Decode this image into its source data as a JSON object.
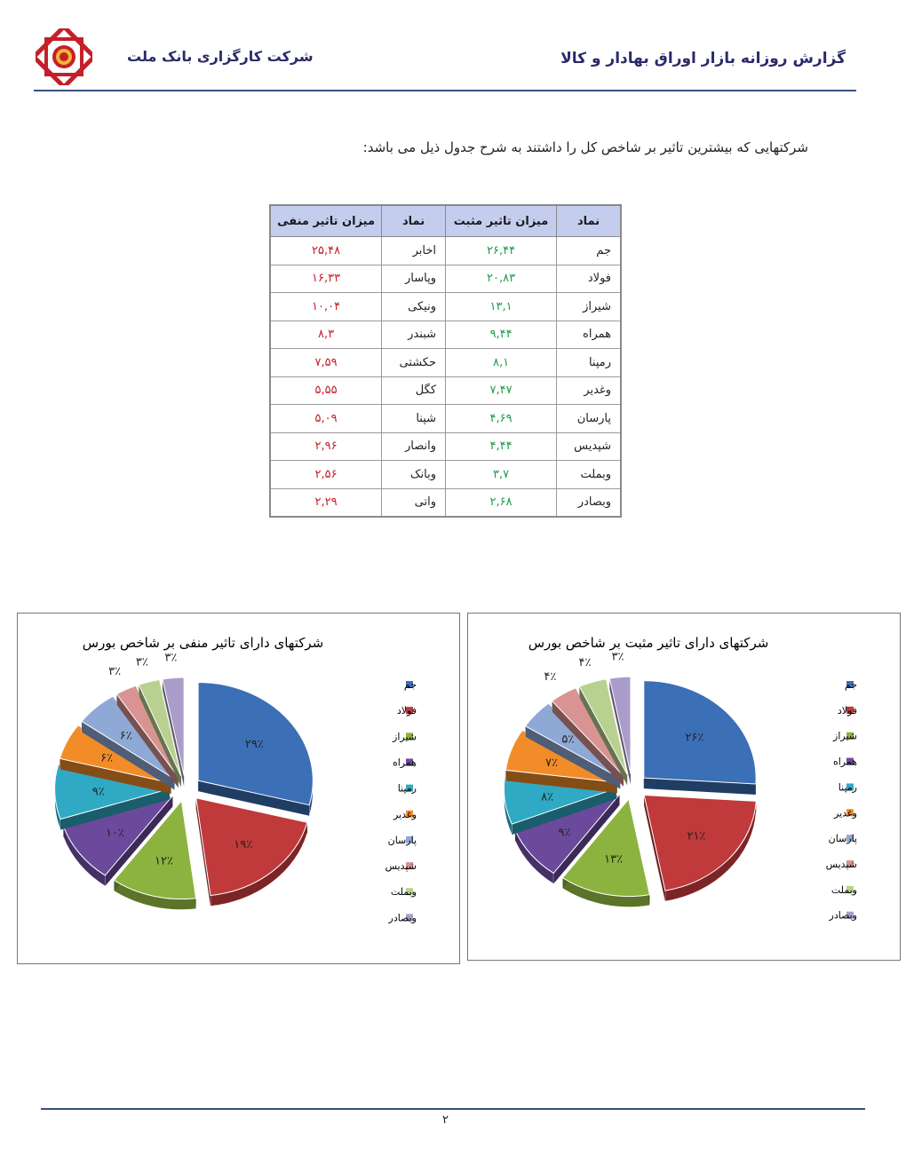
{
  "header": {
    "report_title": "گزارش روزانه بازار اوراق بهادار و کالا",
    "company": "شرکت کارگزاری بانک ملت"
  },
  "intro": "شرکتهایی که بیشترین تاثیر بر شاخص کل را داشتند به شرح جدول ذیل می باشد:",
  "table": {
    "headers": [
      "نماد",
      "میزان تاثیر مثبت",
      "نماد",
      "میزان تاثیر منفی"
    ],
    "rows": [
      {
        "pos_sym": "جم",
        "pos_val": "۲۶,۴۴",
        "neg_sym": "اخابر",
        "neg_val": "۲۵,۴۸"
      },
      {
        "pos_sym": "فولاد",
        "pos_val": "۲۰,۸۳",
        "neg_sym": "وپاسار",
        "neg_val": "۱۶,۳۳"
      },
      {
        "pos_sym": "شیراز",
        "pos_val": "۱۳,۱",
        "neg_sym": "ونیکی",
        "neg_val": "۱۰,۰۴"
      },
      {
        "pos_sym": "همراه",
        "pos_val": "۹,۴۴",
        "neg_sym": "شبندر",
        "neg_val": "۸,۳"
      },
      {
        "pos_sym": "رمپنا",
        "pos_val": "۸,۱",
        "neg_sym": "حکشتی",
        "neg_val": "۷,۵۹"
      },
      {
        "pos_sym": "وغدیر",
        "pos_val": "۷,۴۷",
        "neg_sym": "کگل",
        "neg_val": "۵,۵۵"
      },
      {
        "pos_sym": "پارسان",
        "pos_val": "۴,۶۹",
        "neg_sym": "شپنا",
        "neg_val": "۵,۰۹"
      },
      {
        "pos_sym": "شپدیس",
        "pos_val": "۴,۴۴",
        "neg_sym": "وانصار",
        "neg_val": "۲,۹۶"
      },
      {
        "pos_sym": "وبملت",
        "pos_val": "۳,۷",
        "neg_sym": "وبانک",
        "neg_val": "۲,۵۶"
      },
      {
        "pos_sym": "وبصادر",
        "pos_val": "۲,۶۸",
        "neg_sym": "واتی",
        "neg_val": "۲,۲۹"
      }
    ]
  },
  "colors": {
    "positive": "#1f9a4a",
    "negative": "#c4202a",
    "table_header_bg": "#c5cdee",
    "slices": [
      "#3b6fb6",
      "#c0393b",
      "#8cb33f",
      "#6b4a9c",
      "#2fa9c4",
      "#f28c28",
      "#8fa9d6",
      "#d99392",
      "#b9d190",
      "#ab9dc9"
    ]
  },
  "chart_data": [
    {
      "type": "pie",
      "title": "شرکتهای دارای تاثیر منفی بر شاخص بورس",
      "categories": [
        "جم",
        "فولاد",
        "شیراز",
        "همراه",
        "رمپنا",
        "وغدیر",
        "پارسان",
        "شپدیس",
        "وبملت",
        "وبصادر"
      ],
      "values": [
        29,
        19,
        12,
        10,
        9,
        6,
        6,
        3,
        3,
        3
      ],
      "labels": [
        "۲۹٪",
        "۱۹٪",
        "۱۲٪",
        "۱۰٪",
        "۹٪",
        "۶٪",
        "۶٪",
        "۳٪",
        "۳٪",
        "۳٪"
      ],
      "legend": "right",
      "exploded": true
    },
    {
      "type": "pie",
      "title": "شرکتهای دارای تاثیر مثبت بر شاخص بورس",
      "categories": [
        "جم",
        "فولاد",
        "شیراز",
        "همراه",
        "رمپنا",
        "وغدیر",
        "پارسان",
        "شپدیس",
        "وبملت",
        "وبصادر"
      ],
      "values": [
        26,
        21,
        13,
        9,
        8,
        7,
        5,
        4,
        4,
        3
      ],
      "labels": [
        "۲۶٪",
        "۲۱٪",
        "۱۳٪",
        "۹٪",
        "۸٪",
        "۷٪",
        "۵٪",
        "۴٪",
        "۴٪",
        "۳٪"
      ],
      "legend": "right",
      "exploded": true
    }
  ],
  "footer": {
    "page_number": "۲"
  }
}
